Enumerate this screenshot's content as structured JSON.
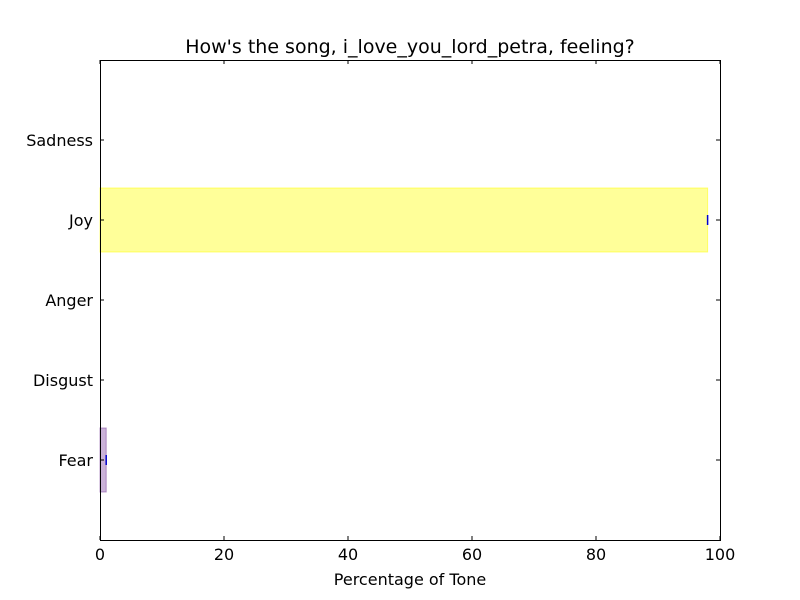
{
  "chart_data": {
    "type": "bar",
    "orientation": "horizontal",
    "title": "How's the song, i_love_you_lord_petra, feeling?",
    "xlabel": "Percentage of Tone",
    "ylabel": "",
    "xlim": [
      0,
      100
    ],
    "xticks": [
      "0",
      "20",
      "40",
      "60",
      "80",
      "100"
    ],
    "categories": [
      "Fear",
      "Disgust",
      "Anger",
      "Joy",
      "Sadness"
    ],
    "values": [
      1,
      0,
      0,
      98,
      0
    ],
    "colors": [
      "#7b3f9e",
      "#2ca02c",
      "#d62728",
      "#ffff00",
      "#1f77b4"
    ],
    "bar_opacity": 0.4,
    "error_marker_color": "#0000cc",
    "grid": false,
    "legend": "none"
  }
}
